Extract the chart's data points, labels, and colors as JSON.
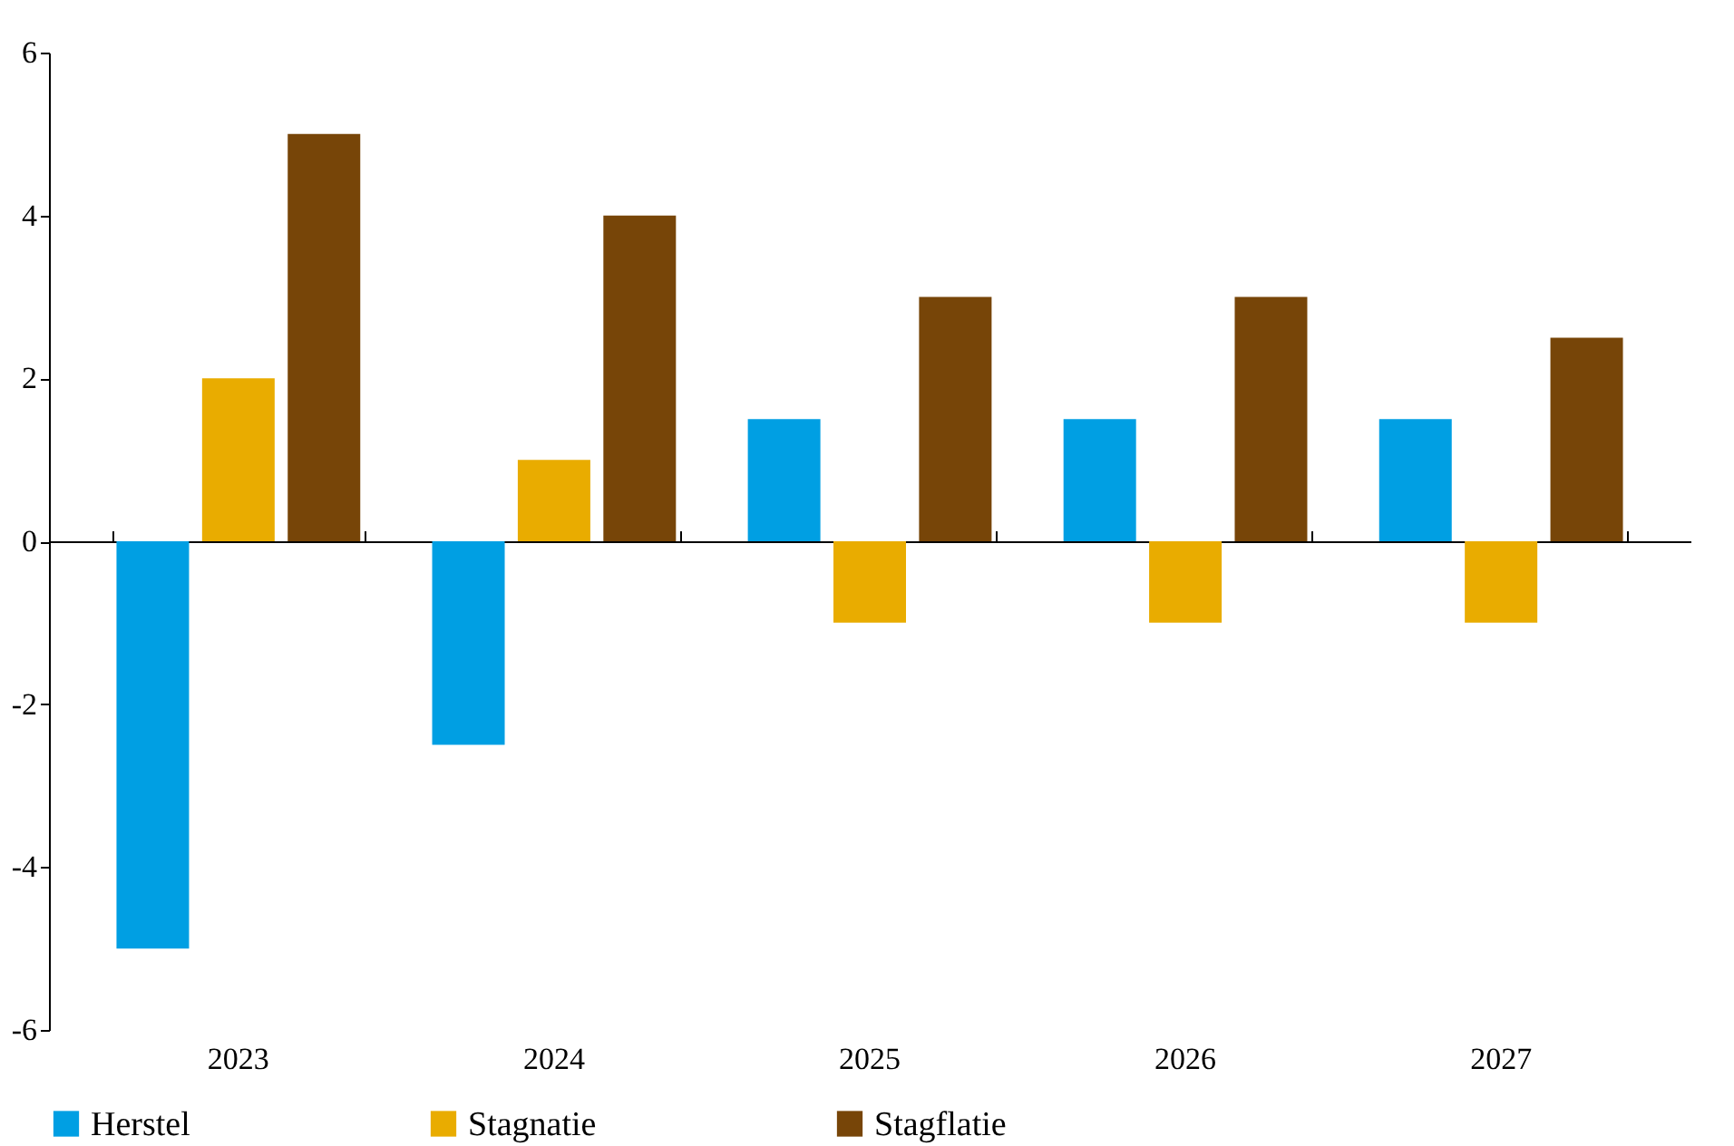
{
  "chart_data": {
    "type": "bar",
    "categories": [
      "2023",
      "2024",
      "2025",
      "2026",
      "2027"
    ],
    "series": [
      {
        "name": "Herstel",
        "color": "#009fe3",
        "values": [
          -5,
          -2.5,
          1.5,
          1.5,
          1.5
        ]
      },
      {
        "name": "Stagnatie",
        "color": "#e9ac00",
        "values": [
          2,
          1,
          -1,
          -1,
          -1
        ]
      },
      {
        "name": "Stagflatie",
        "color": "#774508",
        "values": [
          5,
          4,
          3,
          3,
          2.5
        ]
      }
    ],
    "ylim": [
      -6,
      6
    ],
    "yticks": [
      -6,
      -4,
      -2,
      0,
      2,
      4,
      6
    ],
    "legend": "bottom"
  }
}
